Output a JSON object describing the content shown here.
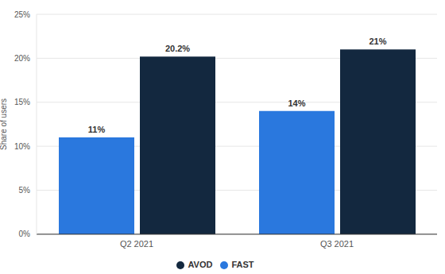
{
  "chart_data": {
    "type": "bar",
    "y_label": "Share of users",
    "categories": [
      "Q2 2021",
      "Q3 2021"
    ],
    "series": [
      {
        "name": "FAST",
        "color": "#2a78de",
        "values": [
          11,
          14
        ],
        "value_labels": [
          "11%",
          "14%"
        ]
      },
      {
        "name": "AVOD",
        "color": "#13283f",
        "values": [
          20.2,
          21
        ],
        "value_labels": [
          "20.2%",
          "21%"
        ]
      }
    ],
    "ylim": [
      0,
      25
    ],
    "yticks": [
      {
        "value": 0,
        "label": "0%"
      },
      {
        "value": 5,
        "label": "5%"
      },
      {
        "value": 10,
        "label": "10%"
      },
      {
        "value": 15,
        "label": "15%"
      },
      {
        "value": 20,
        "label": "20%"
      },
      {
        "value": 25,
        "label": "25%"
      }
    ],
    "grid": true,
    "legend": "bottom",
    "data_labels": true
  }
}
